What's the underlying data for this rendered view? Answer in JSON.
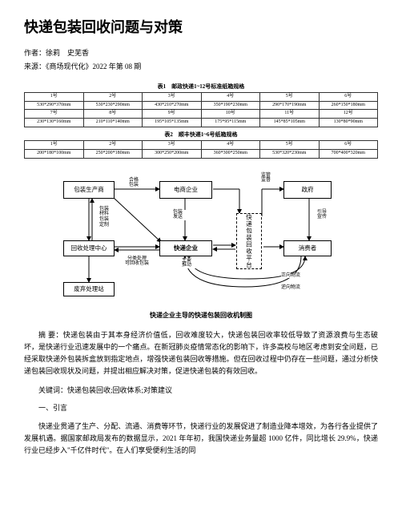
{
  "title": "快递包装回收问题与对策",
  "author_line": "作者：徐莉　史芜香",
  "source_line": "来源：《商场现代化》2022 年第 08 期",
  "table1": {
    "caption": "表1　邮政快递1~12号标准纸箱规格",
    "headers": [
      "1号",
      "2号",
      "3号",
      "4号",
      "5号",
      "6号"
    ],
    "rows": [
      [
        "530*290*370mm",
        "530*230*290mm",
        "430*210*270mm",
        "350*190*230mm",
        "290*170*190mm",
        "260*150*180mm"
      ],
      [
        "7号",
        "8号",
        "9号",
        "10号",
        "11号",
        "12号"
      ],
      [
        "230*130*160mm",
        "210*110*140mm",
        "195*105*135mm",
        "175*95*115mm",
        "145*85*105mm",
        "130*80*90mm"
      ]
    ]
  },
  "table2": {
    "caption": "表2　顺丰快递1~6号纸箱规格",
    "headers": [
      "1号",
      "2号",
      "3号",
      "4号",
      "5号",
      "6号"
    ],
    "rows": [
      [
        "200*180*100mm",
        "250*200*180mm",
        "300*250*200mm",
        "360*300*250mm",
        "530*320*230mm",
        "700*400*320mm"
      ]
    ]
  },
  "diagram": {
    "title": "快递企业主导的快递包装回收机制图",
    "nodes": {
      "pkg_producer": "包装生产商",
      "ecommerce": "电商企业",
      "platform": "快递包装回收平台",
      "government": "政府",
      "recycle_center": "回收处理中心",
      "express": "快递企业",
      "consumer": "消费者",
      "disposal": "废弃处理站"
    },
    "edge_labels": {
      "to_ecom": "合格\n包装",
      "pkg_order": "包装\n材料\n包装\n定制",
      "pkg_send": "包装\n发送",
      "supervise": "监管\n监督",
      "guide": "引导\n宣传",
      "main_push": "主要\n推动",
      "classify": "分类处理\n可回收包装",
      "return1": "正向物流",
      "return2": "逆向物流"
    }
  },
  "abstract_label": "摘 要：",
  "abstract": "快递包装由于其本身经济价值低，回收难度较大，快递包装回收率较低导致了资源浪费与生态破坏，是快递行业迅速发展中的一个痛点。在新冠肺炎疫情常态化的影响下，许多高校与地区考虑到安全问题，已经采取快递外包装拆盒放到指定地点，增强快递包装回收等措施。但在回收过程中仍存在一些问题，通过分析快递包装回收现状及问题，并提出相应解决对策，促进快递包装的有效回收。",
  "keywords_label": "关键词：",
  "keywords": "快递包装回收;回收体系;对策建议",
  "section1": "一、引言",
  "para1": "快递业贯通了生产、分配、流通、消费等环节，快递行业的发展促进了制造业降本增效，为各行各业提供了发展机遇。据国家邮政局发布的数据显示，2021 年年初，我国快递业务量超 1000 亿件，同比增长 29.9%，快递行业已经步入\"千亿件时代\"。在人们享受便利生活的同"
}
